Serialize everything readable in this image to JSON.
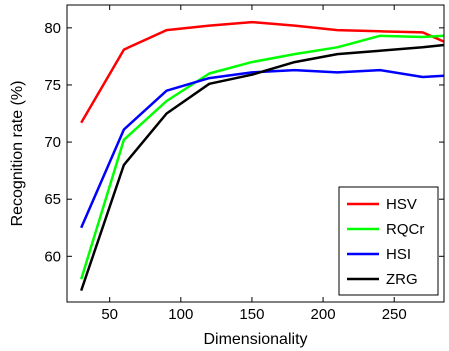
{
  "chart_data": {
    "type": "line",
    "xlabel": "Dimensionality",
    "ylabel": "Recognition rate (%)",
    "xlim": [
      20,
      285
    ],
    "ylim": [
      56,
      82
    ],
    "xticks": [
      50,
      100,
      150,
      200,
      250
    ],
    "yticks": [
      60,
      65,
      70,
      75,
      80
    ],
    "grid": false,
    "legend_position": "bottom-right",
    "x": [
      30,
      60,
      90,
      120,
      150,
      180,
      210,
      240,
      270,
      285
    ],
    "series": [
      {
        "name": "HSV",
        "color": "#ff0000",
        "values": [
          71.7,
          78.1,
          79.8,
          80.2,
          80.5,
          80.2,
          79.8,
          79.7,
          79.6,
          78.8
        ]
      },
      {
        "name": "RQCr",
        "color": "#00ff00",
        "values": [
          58.0,
          70.2,
          73.6,
          76.0,
          77.0,
          77.7,
          78.3,
          79.3,
          79.2,
          79.3
        ]
      },
      {
        "name": "HSI",
        "color": "#0000ff",
        "values": [
          62.5,
          71.1,
          74.5,
          75.6,
          76.1,
          76.3,
          76.1,
          76.3,
          75.7,
          75.8
        ]
      },
      {
        "name": "ZRG",
        "color": "#000000",
        "values": [
          57.0,
          68.0,
          72.5,
          75.1,
          75.9,
          77.0,
          77.7,
          78.0,
          78.3,
          78.5
        ]
      }
    ]
  }
}
